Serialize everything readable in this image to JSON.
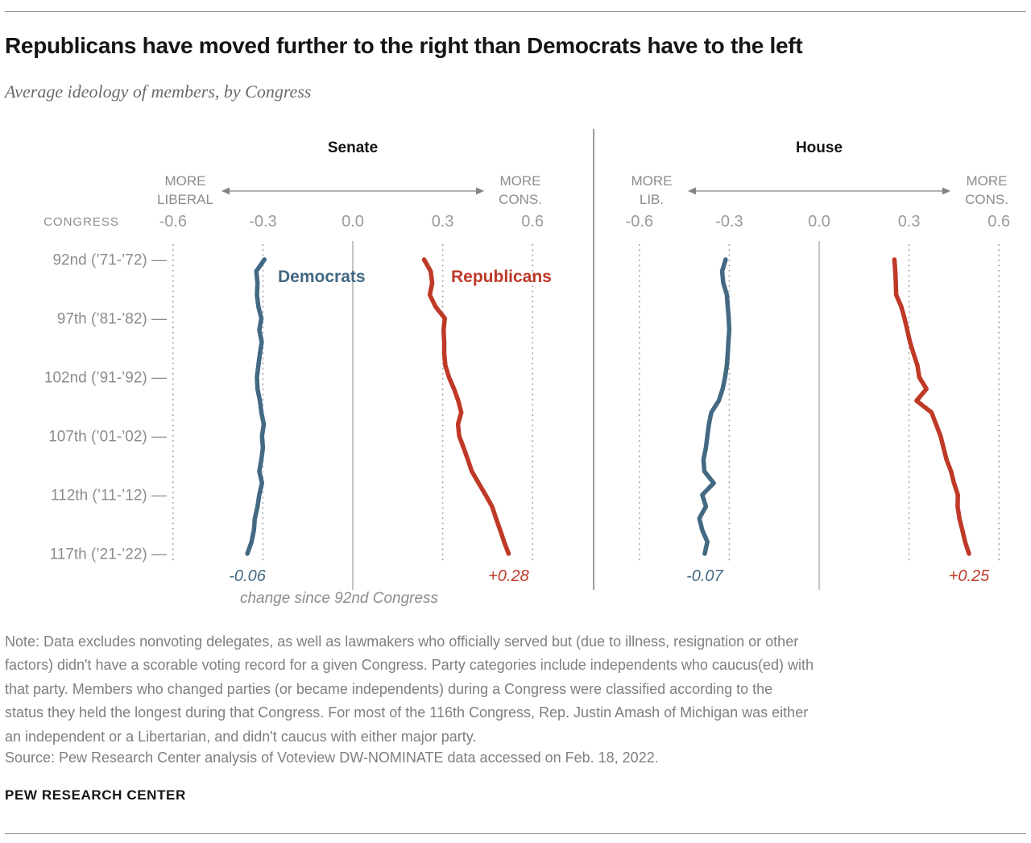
{
  "header": {
    "title": "Republicans have moved further to the right than Democrats have to the left",
    "subtitle": "Average ideology of members, by Congress"
  },
  "chart_data": {
    "type": "line",
    "orientation": "vertical-time",
    "x_range": [
      -0.6,
      0.6
    ],
    "x_ticks": [
      -0.6,
      -0.3,
      0.0,
      0.3,
      0.6
    ],
    "x_tick_labels": [
      "-0.6",
      "-0.3",
      "0.0",
      "0.3",
      "0.6"
    ],
    "congress_label": "CONGRESS",
    "congress_range": [
      92,
      117
    ],
    "congress_ticks": [
      "92nd (’71-’72)",
      "97th (’81-’82)",
      "102nd (’91-’92)",
      "107th (’01-’02)",
      "112th (’11-’12)",
      "117th (’21-’22)"
    ],
    "caption": "change since 92nd Congress",
    "grid": "dotted vertical gridlines at ticks, solid line at 0.0",
    "panels": [
      {
        "title": "Senate",
        "more_liberal_label": [
          "MORE",
          "LIBERAL"
        ],
        "more_conservative_label": [
          "MORE",
          "CONS."
        ],
        "show_series_labels": true,
        "series": [
          {
            "name": "Democrats",
            "color": "#436983",
            "change_label": "-0.06",
            "values": [
              -0.295,
              -0.322,
              -0.318,
              -0.32,
              -0.315,
              -0.305,
              -0.312,
              -0.304,
              -0.31,
              -0.315,
              -0.32,
              -0.318,
              -0.31,
              -0.305,
              -0.297,
              -0.303,
              -0.3,
              -0.305,
              -0.312,
              -0.303,
              -0.312,
              -0.318,
              -0.327,
              -0.33,
              -0.338,
              -0.352
            ]
          },
          {
            "name": "Republicans",
            "color": "#bf3927",
            "change_label": "+0.28",
            "values": [
              0.238,
              0.26,
              0.265,
              0.257,
              0.276,
              0.307,
              0.303,
              0.305,
              0.305,
              0.309,
              0.321,
              0.338,
              0.352,
              0.362,
              0.351,
              0.355,
              0.37,
              0.384,
              0.397,
              0.42,
              0.443,
              0.465,
              0.478,
              0.492,
              0.505,
              0.52
            ]
          }
        ]
      },
      {
        "title": "House",
        "more_liberal_label": [
          "MORE",
          "LIB."
        ],
        "more_conservative_label": [
          "MORE",
          "CONS."
        ],
        "show_series_labels": false,
        "series": [
          {
            "name": "Democrats",
            "color": "#436983",
            "change_label": "-0.07",
            "values": [
              -0.312,
              -0.324,
              -0.32,
              -0.308,
              -0.305,
              -0.302,
              -0.3,
              -0.303,
              -0.305,
              -0.308,
              -0.314,
              -0.322,
              -0.335,
              -0.36,
              -0.368,
              -0.373,
              -0.378,
              -0.386,
              -0.383,
              -0.352,
              -0.39,
              -0.378,
              -0.4,
              -0.39,
              -0.373,
              -0.382
            ]
          },
          {
            "name": "Republicans",
            "color": "#bf3927",
            "change_label": "+0.25",
            "values": [
              0.251,
              0.254,
              0.256,
              0.257,
              0.274,
              0.285,
              0.294,
              0.303,
              0.315,
              0.328,
              0.334,
              0.358,
              0.325,
              0.375,
              0.39,
              0.405,
              0.415,
              0.425,
              0.44,
              0.45,
              0.463,
              0.462,
              0.468,
              0.478,
              0.487,
              0.5
            ]
          }
        ]
      }
    ]
  },
  "note_lines": [
    "Note: Data excludes nonvoting delegates, as well as lawmakers who officially served but (due to illness, resignation or other",
    "factors) didn't have a scorable voting record for a given Congress. Party categories include independents who caucus(ed) with",
    "that party. Members who changed parties (or became independents) during a Congress were classified according to the",
    "status they held the longest during that Congress. For most of the 116th Congress, Rep. Justin Amash of Michigan was either",
    "an independent or a Libertarian, and didn't caucus with either major party."
  ],
  "source": "Source: Pew Research Center analysis of Voteview DW-NOMINATE data accessed on Feb. 18, 2022.",
  "footer": "PEW RESEARCH CENTER"
}
